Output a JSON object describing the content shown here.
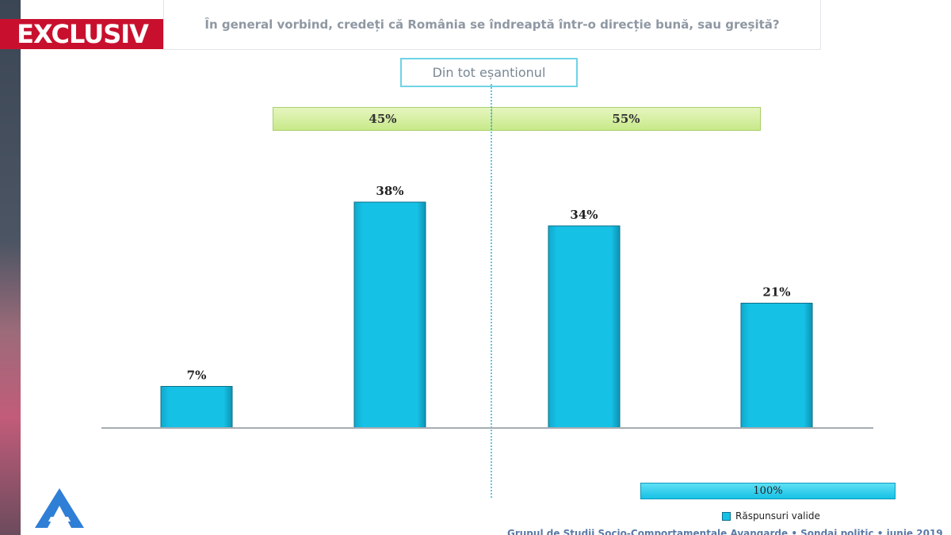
{
  "badge": {
    "label": "EXCLUSIV",
    "color": "#c8102e"
  },
  "question": "În general vorbind, credeți că România se îndreaptă într-o direcție bună, sau greșită?",
  "sample_label": "Din tot eșantionul",
  "groups": [
    {
      "label": "45%",
      "value": 45
    },
    {
      "label": "55%",
      "value": 55
    }
  ],
  "total_bar": {
    "label": "100%",
    "value": 100
  },
  "legend": {
    "label": "Răspunsuri valide",
    "color": "#16c1e6"
  },
  "footer": "Grupul de Studii Socio-Comportamentale Avangarde  •  Sondaj politic  •  iunie 2019",
  "brand_logo": {
    "icon": "avangarde-a-logo-icon",
    "color": "#2f7fd6"
  },
  "chart_data": {
    "type": "bar",
    "categories": [
      "",
      "",
      "",
      ""
    ],
    "values": [
      7,
      38,
      34,
      21
    ],
    "data_labels": [
      "7%",
      "38%",
      "34%",
      "21%"
    ],
    "ylim": [
      0,
      40
    ],
    "bar_color": "#16c1e6",
    "grid": false,
    "legend_position": "bottom-right"
  }
}
